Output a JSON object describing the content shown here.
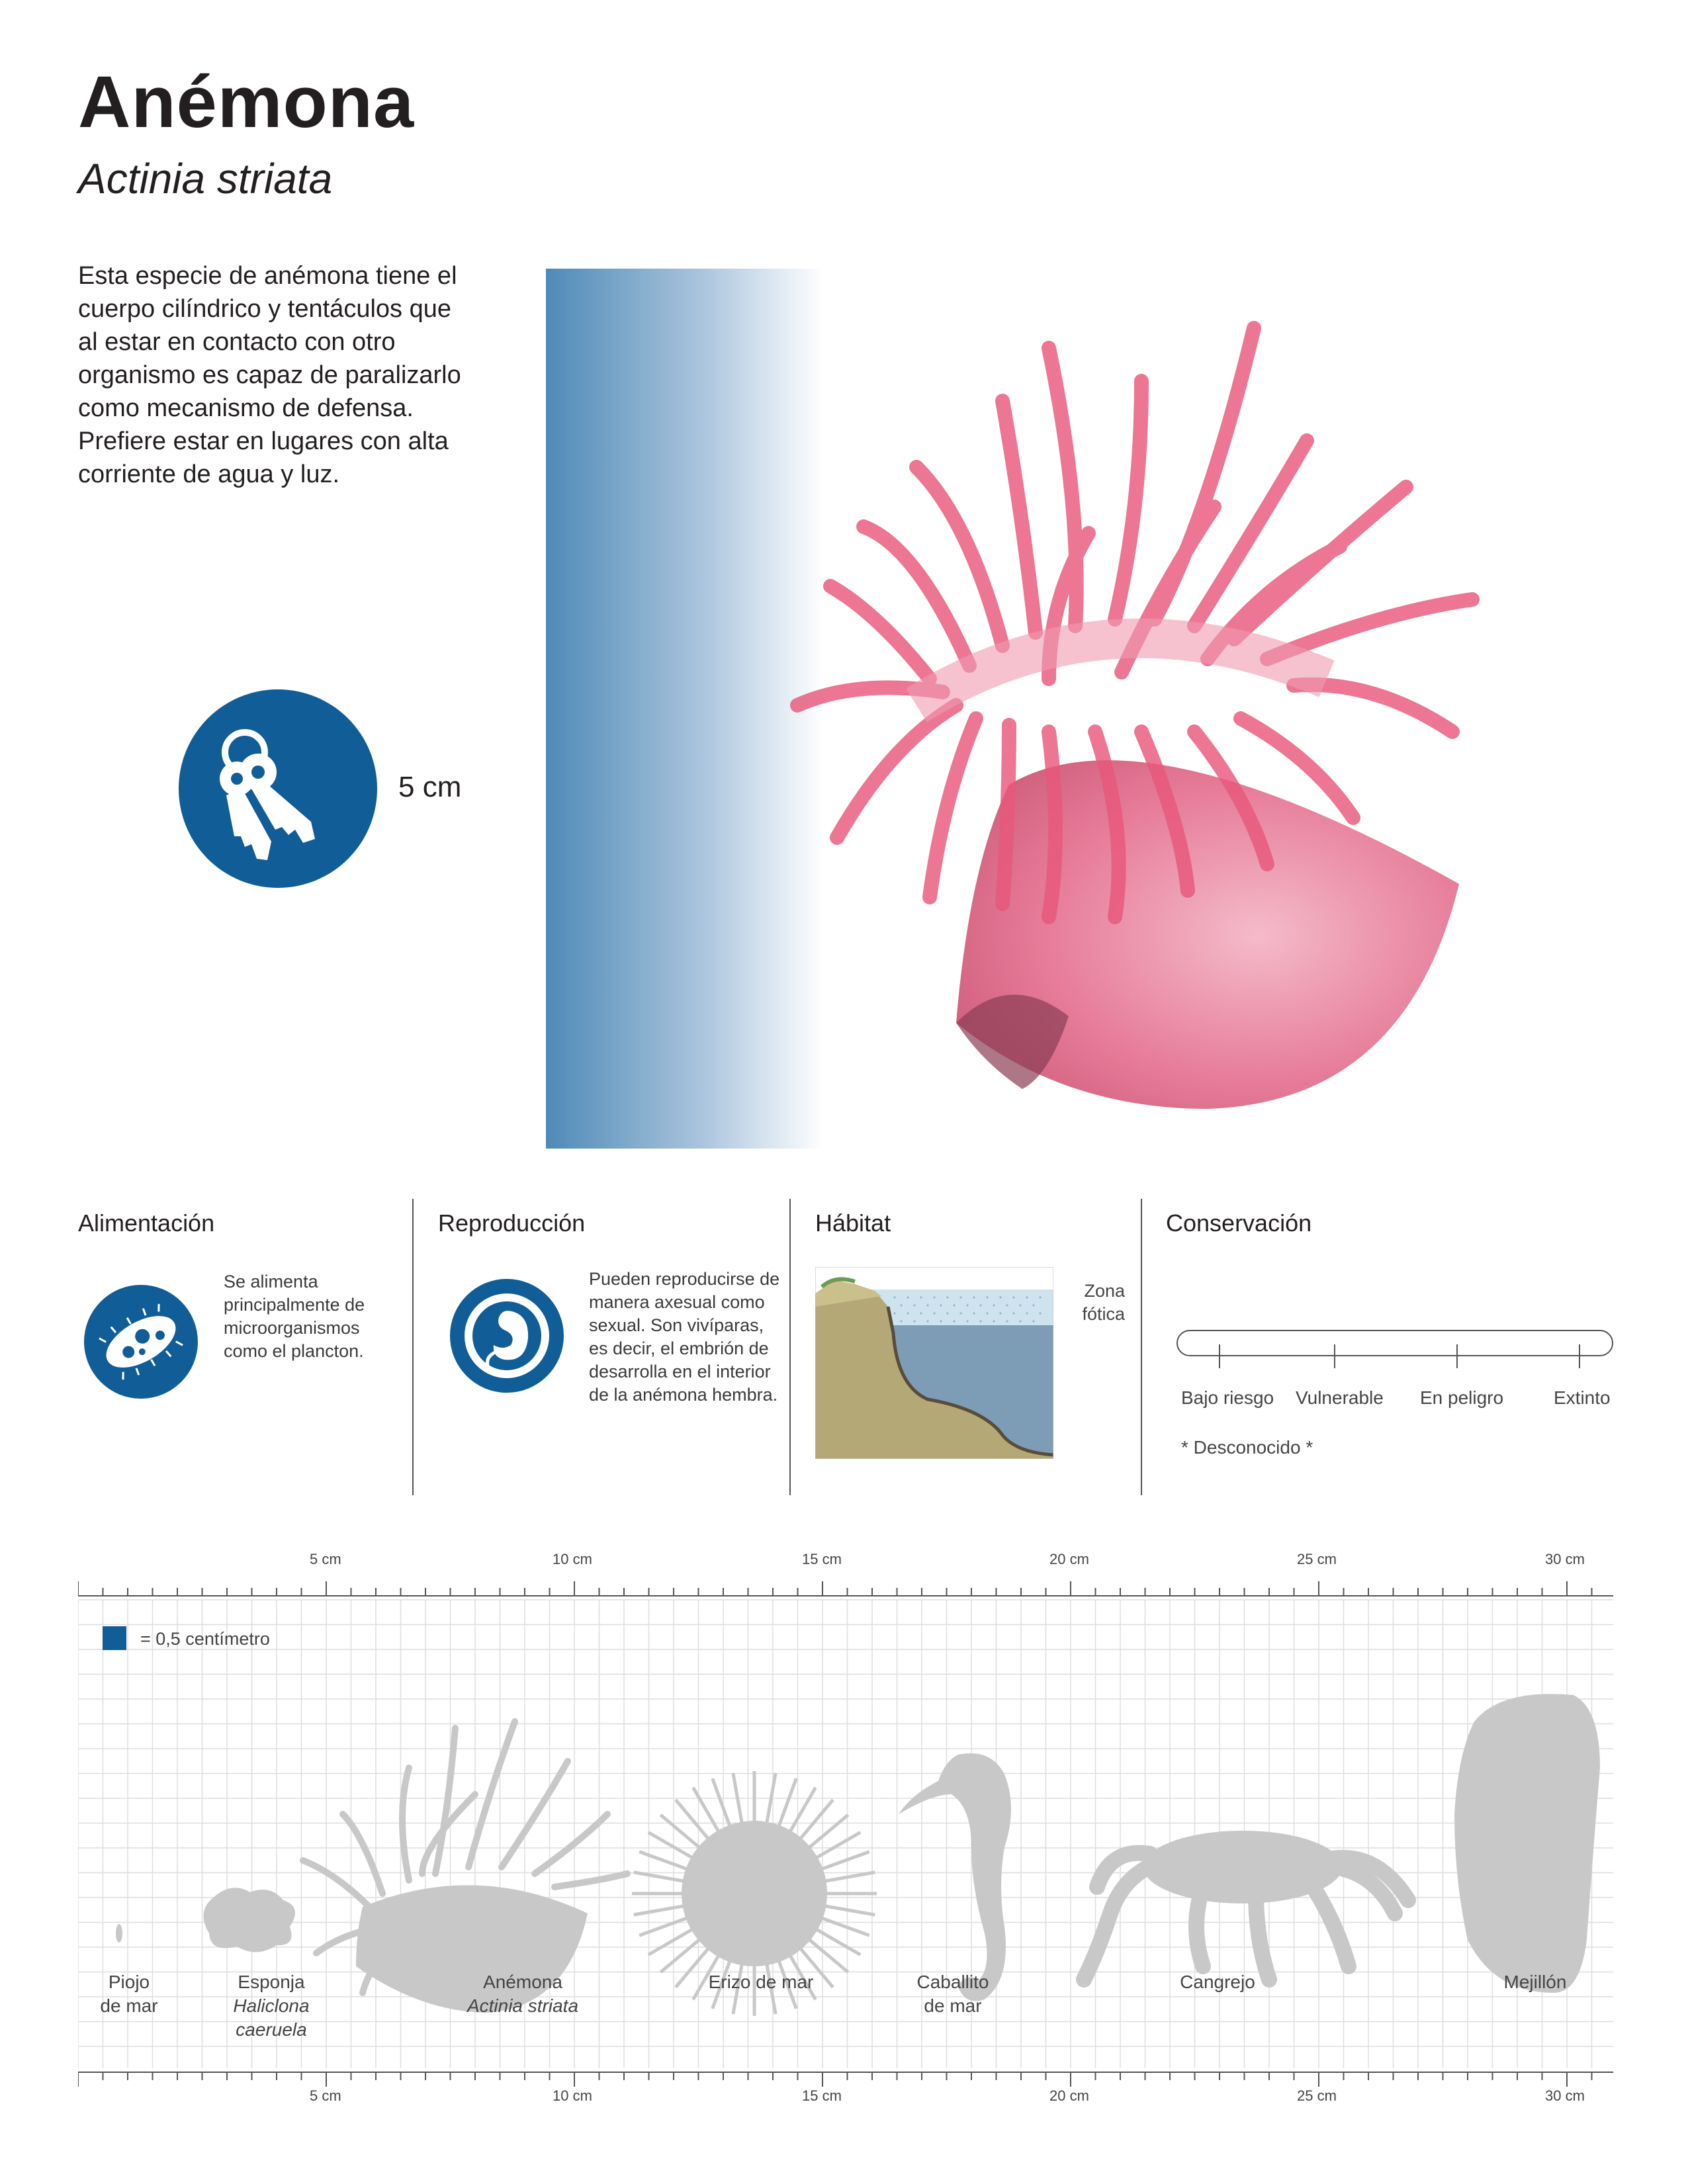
{
  "header": {
    "title": "Anémona",
    "subtitle": "Actinia striata"
  },
  "description": "Esta especie de anémona tiene el cuerpo cilíndrico y tentáculos que al estar en contacto con otro organismo es capaz de paralizarlo como mecanismo de defensa. Prefiere estar en lugares con alta corriente de agua y luz.",
  "size": {
    "icon": "keys-icon",
    "label": "5 cm"
  },
  "colors": {
    "accent_blue": "#105d97",
    "anemone_pink": "#e35d80",
    "silhouette_gray": "#c8c8c8"
  },
  "sections": {
    "alimentacion": {
      "title": "Alimentación",
      "icon": "microorganism-icon",
      "text": "Se alimenta principalmente de microorganismos como el plancton."
    },
    "reproduccion": {
      "title": "Reproducción",
      "icon": "embryo-icon",
      "text": "Pueden reproducirse de manera axesual como sexual. Son vivíparas, es decir, el embrión de desarrolla en el interior de la anémona hembra."
    },
    "habitat": {
      "title": "Hábitat",
      "zone_label": "Zona fótica"
    },
    "conservacion": {
      "title": "Conservación",
      "levels": [
        "Bajo riesgo",
        "Vulnerable",
        "En peligro",
        "Extinto"
      ],
      "status": "* Desconocido *"
    }
  },
  "scale": {
    "ticks": [
      "5 cm",
      "10 cm",
      "15 cm",
      "20 cm",
      "25 cm",
      "30 cm"
    ],
    "legend": "= 0,5 centímetro",
    "animals": [
      {
        "name": "Piojo de mar",
        "latin": ""
      },
      {
        "name": "Esponja",
        "latin": "Haliclona caeruela"
      },
      {
        "name": "Anémona",
        "latin": "Actinia striata"
      },
      {
        "name": "Erizo de mar",
        "latin": ""
      },
      {
        "name": "Caballito de mar",
        "latin": ""
      },
      {
        "name": "Cangrejo",
        "latin": ""
      },
      {
        "name": "Mejillón",
        "latin": ""
      }
    ]
  }
}
